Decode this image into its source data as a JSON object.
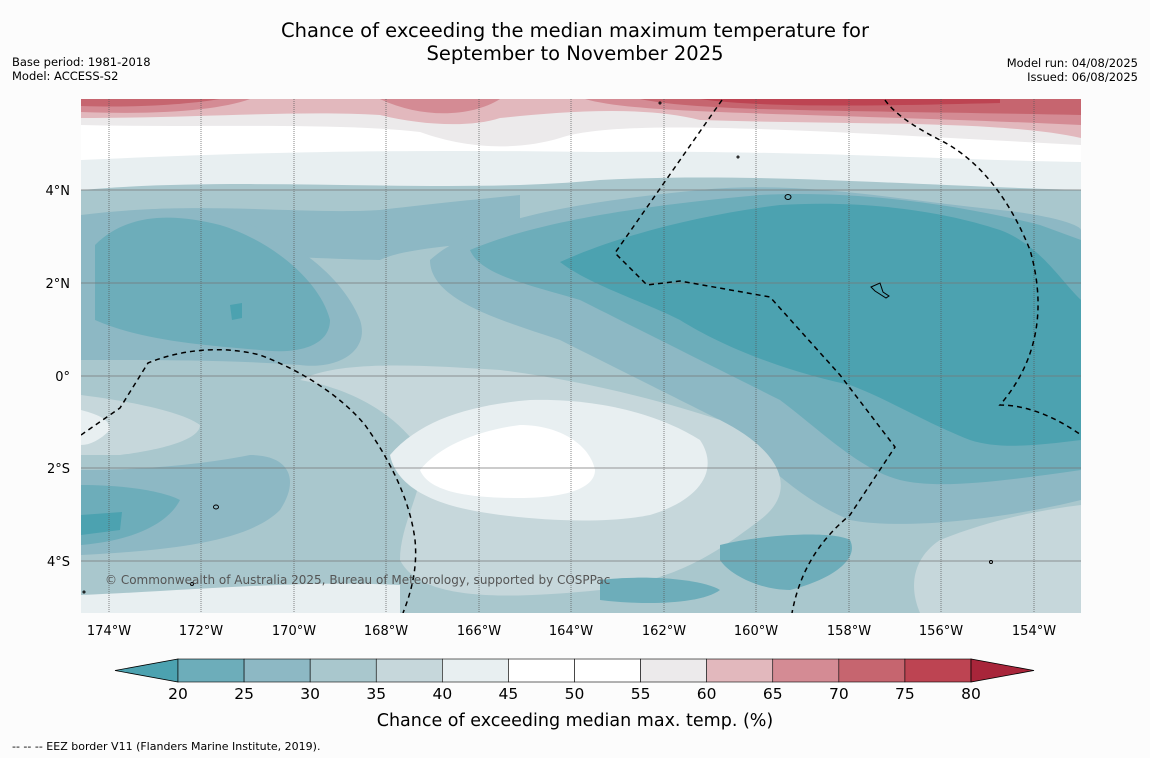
{
  "title": {
    "line1": "Chance of exceeding the median maximum temperature for",
    "line2": "September to November 2025"
  },
  "meta_left": {
    "base_period": "Base period: 1981-2018",
    "model": "Model: ACCESS-S2"
  },
  "meta_right": {
    "model_run": "Model run: 04/08/2025",
    "issued": "Issued: 06/08/2025"
  },
  "map": {
    "lon_labels": [
      "174°W",
      "172°W",
      "170°W",
      "168°W",
      "166°W",
      "164°W",
      "162°W",
      "160°W",
      "158°W",
      "156°W",
      "154°W"
    ],
    "lat_labels": [
      "4°N",
      "2°N",
      "0°",
      "2°S",
      "4°S"
    ],
    "copyright": "© Commonwealth of Australia 2025, Bureau of Meteorology, supported by COSPPac"
  },
  "colorbar": {
    "ticks": [
      "20",
      "25",
      "30",
      "35",
      "40",
      "45",
      "50",
      "55",
      "60",
      "65",
      "70",
      "75",
      "80"
    ],
    "colors": {
      "lt20": "#4ca2b0",
      "20-25": "#6dadba",
      "25-30": "#8db8c4",
      "30-35": "#a9c7cd",
      "35-40": "#c6d7db",
      "40-45": "#e8eff1",
      "45-50": "#ffffff",
      "50-55": "#ffffff",
      "55-60": "#eceaeb",
      "60-65": "#e2b8bd",
      "65-70": "#d48b94",
      "70-75": "#c6656f",
      "75-80": "#bd4452",
      "gt80": "#a8253a"
    },
    "label": "Chance of exceeding median max. temp. (%)"
  },
  "footnote": "-- -- -- EEZ border V11 (Flanders Marine Institute, 2019)."
}
